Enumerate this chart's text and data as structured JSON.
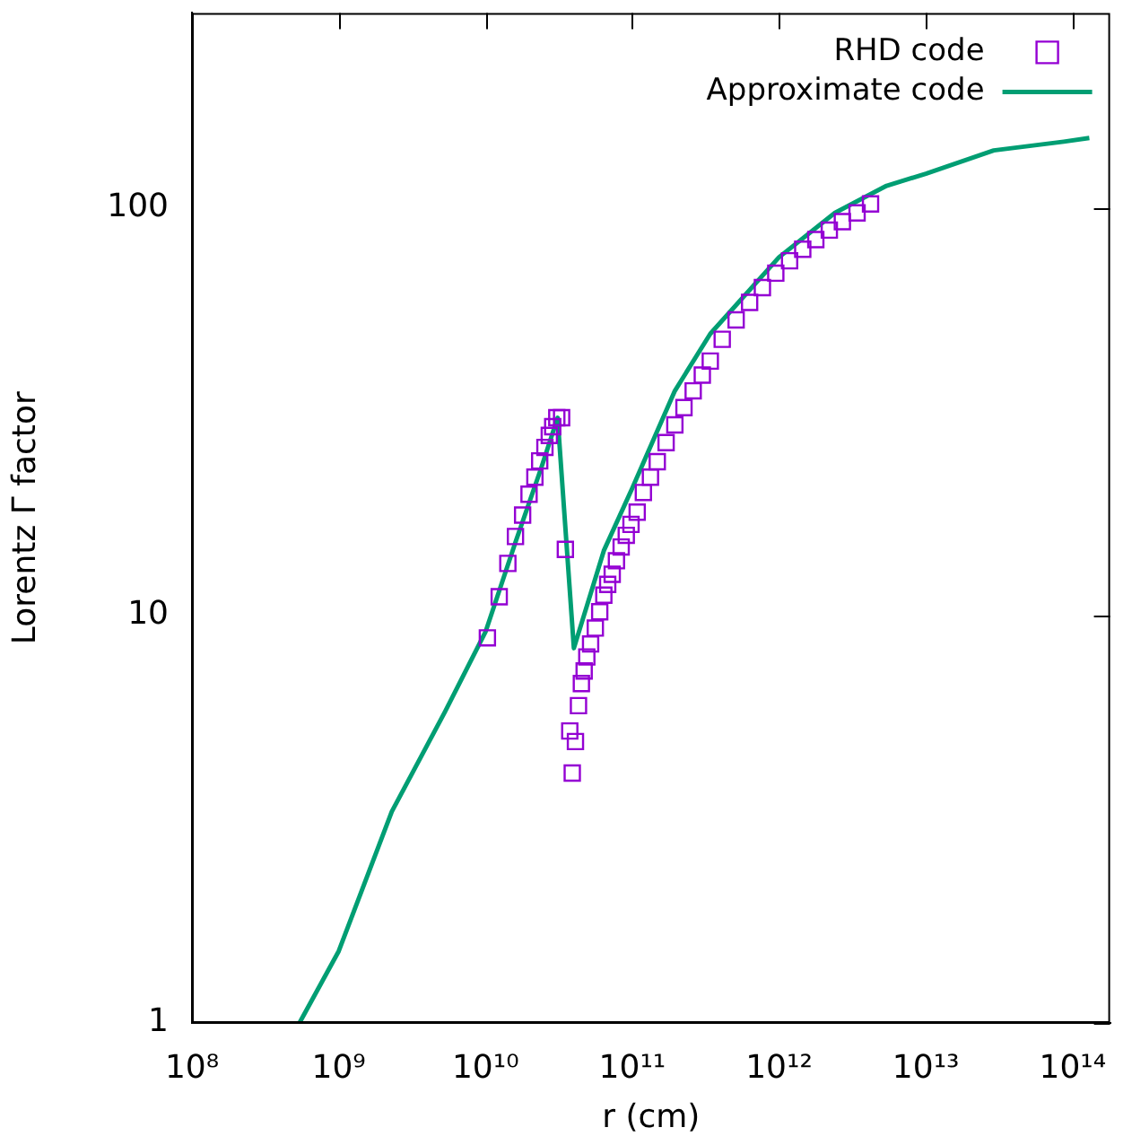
{
  "chart_data": {
    "type": "scatter",
    "xlabel": "r (cm)",
    "ylabel": "Lorentz Γ factor",
    "log": "xy",
    "legend": "top right",
    "grid": false,
    "xlim": [
      100000000.0,
      180000000000000.0
    ],
    "ylim": [
      1,
      300
    ],
    "xticks": [
      {
        "value": 100000000.0,
        "label": "10⁸"
      },
      {
        "value": 1000000000.0,
        "label": "10⁹"
      },
      {
        "value": 10000000000.0,
        "label": "10¹⁰"
      },
      {
        "value": 100000000000.0,
        "label": "10¹¹"
      },
      {
        "value": 1000000000000.0,
        "label": "10¹²"
      },
      {
        "value": 10000000000000.0,
        "label": "10¹³"
      },
      {
        "value": 100000000000000.0,
        "label": "10¹⁴"
      }
    ],
    "yticks": [
      1,
      10,
      100
    ],
    "series": [
      {
        "name": "RHD code",
        "type": "scatter",
        "marker": "square",
        "color": "#9400d3",
        "x": [
          10300000000.0,
          12400000000.0,
          14200000000.0,
          16000000000.0,
          17900000000.0,
          19800000000.0,
          21700000000.0,
          23400000000.0,
          25400000000.0,
          27200000000.0,
          28700000000.0,
          30600000000.0,
          33000000000.0,
          35000000000.0,
          37500000000.0,
          41000000000.0,
          39000000000.0,
          43000000000.0,
          45000000000.0,
          47000000000.0,
          49000000000.0,
          52000000000.0,
          56000000000.0,
          60000000000.0,
          64000000000.0,
          68000000000.0,
          73000000000.0,
          78000000000.0,
          84000000000.0,
          91000000000.0,
          98000000000.0,
          108000000000.0,
          119000000000.0,
          133000000000.0,
          148000000000.0,
          170000000000.0,
          195000000000.0,
          225000000000.0,
          260000000000.0,
          300000000000.0,
          340000000000.0,
          410000000000.0,
          510000000000.0,
          630000000000.0,
          770000000000.0,
          950000000000.0,
          1180000000000.0,
          1450000000000.0,
          1780000000000.0,
          2200000000000.0,
          2700000000000.0,
          3400000000000.0,
          4200000000000.0
        ],
        "values": [
          8.8,
          11.1,
          13.4,
          15.6,
          17.6,
          19.8,
          21.8,
          23.9,
          25.8,
          27.6,
          29.0,
          30.5,
          30.5,
          14.5,
          5.2,
          4.9,
          4.1,
          6.0,
          6.8,
          7.3,
          7.9,
          8.5,
          9.3,
          10.2,
          11.2,
          11.9,
          12.6,
          13.6,
          14.7,
          15.7,
          16.7,
          17.9,
          20,
          21.8,
          23.8,
          26.5,
          29.3,
          32.3,
          35.5,
          38.8,
          42,
          47.5,
          53,
          58.5,
          63.6,
          69,
          74,
          79,
          83.4,
          88,
          92.3,
          97,
          102
        ]
      },
      {
        "name": "Approximate code",
        "type": "line",
        "marker": "none",
        "line_style": "solid",
        "color": "#009e73",
        "x": [
          540000000.0,
          1000000000.0,
          2300000000.0,
          5300000000.0,
          10000000000.0,
          16000000000.0,
          24000000000.0,
          31000000000.0,
          40000000000.0,
          64000000000.0,
          100000000000.0,
          195000000000.0,
          340000000000.0,
          1000000000000.0,
          2400000000000.0,
          5400000000000.0,
          10000000000000.0,
          29000000000000.0,
          87000000000000.0,
          130000000000000.0
        ],
        "values": [
          1,
          1.5,
          3.3,
          5.8,
          9.1,
          15.1,
          23,
          30.5,
          8.3,
          14.4,
          20.5,
          35.5,
          49,
          75.5,
          97,
          113,
          121,
          138,
          145,
          148
        ]
      }
    ]
  }
}
